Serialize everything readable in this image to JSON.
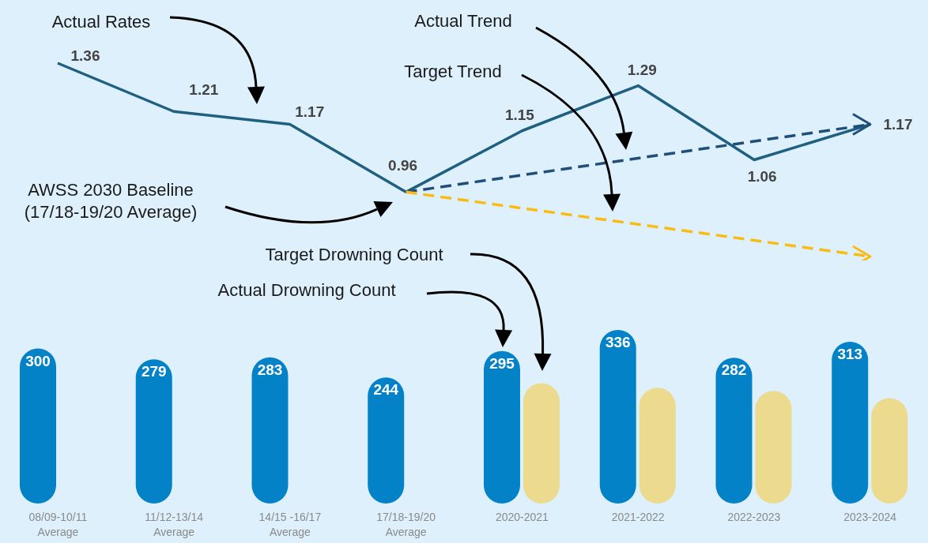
{
  "chart_data": [
    {
      "type": "line",
      "categories": [
        null,
        null,
        null,
        null,
        null,
        null,
        null,
        null
      ],
      "annotations": [
        "Actual Rates",
        "Actual Trend",
        "Target Trend",
        "AWSS 2030 Baseline\n(17/18-19/20 Average)"
      ],
      "series": [
        {
          "color": "#1f5f7f",
          "values": [
            1.36,
            1.21,
            1.17,
            0.96,
            1.15,
            1.29,
            1.06,
            1.17
          ],
          "value_labels": [
            "1.36",
            "1.21",
            "1.17",
            "0.96",
            "1.15",
            "1.29",
            "1.06",
            "1.17"
          ]
        },
        {
          "color": "#1f4e79",
          "line_style": "dashed",
          "values": [
            null,
            null,
            null,
            0.96,
            null,
            null,
            null,
            1.17
          ]
        },
        {
          "color": "#f9bc15",
          "line_style": "dashed",
          "values": [
            null,
            null,
            null,
            0.96,
            null,
            null,
            null,
            0.76
          ]
        }
      ]
    },
    {
      "type": "bar",
      "categories": [
        "08/09-10/11\nAverage",
        "11/12-13/14\nAverage",
        "14/15 -16/17\nAverage",
        "17/18-19/20\nAverage",
        "2020-2021",
        "2021-2022",
        "2022-2023",
        "2023-2024"
      ],
      "annotations": [
        "Target Drowning Count",
        "Actual Drowning Count"
      ],
      "series": [
        {
          "color": "#0482c8",
          "values": [
            300,
            279,
            283,
            244,
            295,
            336,
            282,
            313
          ],
          "value_labels": [
            "300",
            "279",
            "283",
            "244",
            "295",
            "336",
            "282",
            "313"
          ]
        },
        {
          "color": "#ecda8e",
          "values": [
            null,
            null,
            null,
            null,
            233,
            224,
            218,
            204
          ]
        }
      ]
    }
  ]
}
